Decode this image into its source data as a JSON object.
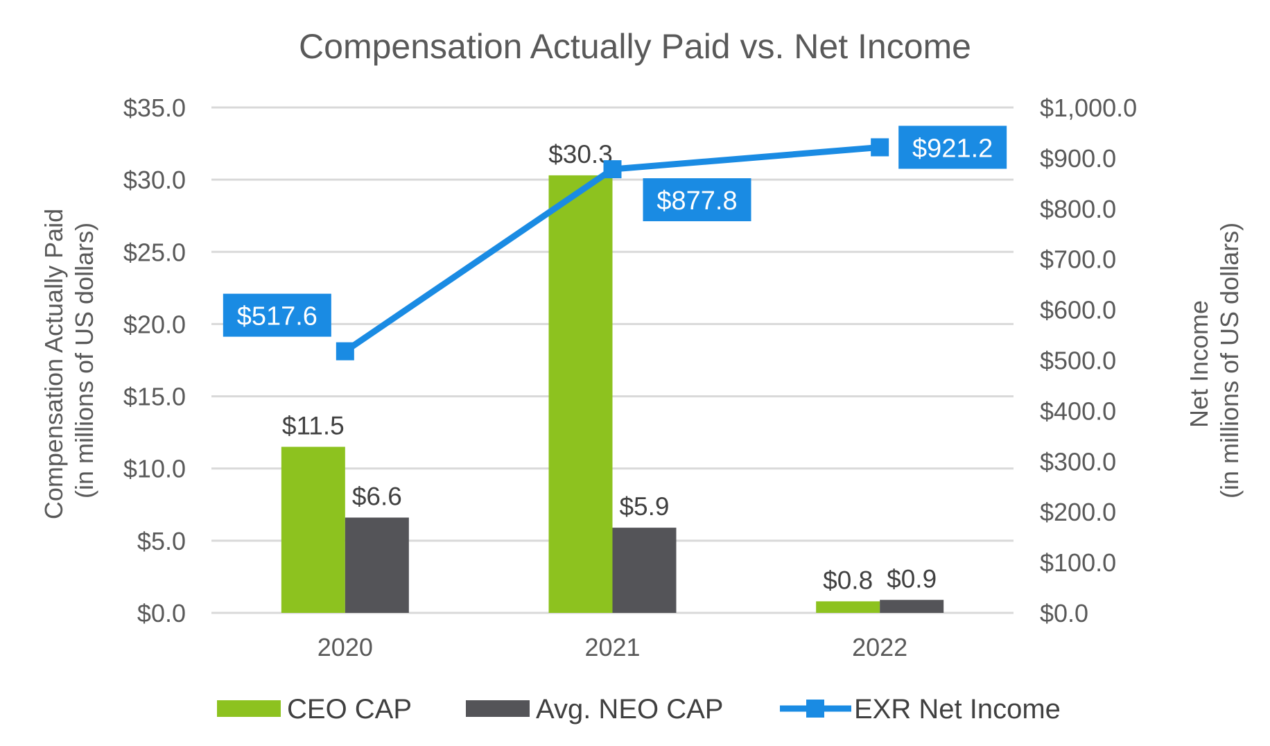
{
  "chart_data": {
    "type": "bar",
    "title": "Compensation Actually Paid vs. Net Income",
    "categories": [
      "2020",
      "2021",
      "2022"
    ],
    "ylabel_left": [
      "Compensation Actually Paid",
      "(in millions of US dollars)"
    ],
    "ylabel_right": [
      "Net Income",
      "(in millions of US dollars)"
    ],
    "ylim_left": [
      0,
      35
    ],
    "ylim_right": [
      0,
      1000
    ],
    "left_ticks": [
      {
        "value": 0,
        "label": "$0.0"
      },
      {
        "value": 5,
        "label": "$5.0"
      },
      {
        "value": 10,
        "label": "$10.0"
      },
      {
        "value": 15,
        "label": "$15.0"
      },
      {
        "value": 20,
        "label": "$20.0"
      },
      {
        "value": 25,
        "label": "$25.0"
      },
      {
        "value": 30,
        "label": "$30.0"
      },
      {
        "value": 35,
        "label": "$35.0"
      }
    ],
    "right_ticks": [
      {
        "value": 0,
        "label": "$0.0"
      },
      {
        "value": 100,
        "label": "$100.0"
      },
      {
        "value": 200,
        "label": "$200.0"
      },
      {
        "value": 300,
        "label": "$300.0"
      },
      {
        "value": 400,
        "label": "$400.0"
      },
      {
        "value": 500,
        "label": "$500.0"
      },
      {
        "value": 600,
        "label": "$600.0"
      },
      {
        "value": 700,
        "label": "$700.0"
      },
      {
        "value": 800,
        "label": "$800.0"
      },
      {
        "value": 900,
        "label": "$900.0"
      },
      {
        "value": 1000,
        "label": "$1,000.0"
      }
    ],
    "grid": true,
    "legend_position": "bottom",
    "series": [
      {
        "name": "CEO CAP",
        "kind": "bar",
        "axis": "left",
        "color": "#8DC21F",
        "values": [
          11.5,
          30.3,
          0.8
        ],
        "labels": [
          "$11.5",
          "$30.3",
          "$0.8"
        ]
      },
      {
        "name": "Avg. NEO CAP",
        "kind": "bar",
        "axis": "left",
        "color": "#545458",
        "values": [
          6.6,
          5.9,
          0.9
        ],
        "labels": [
          "$6.6",
          "$5.9",
          "$0.9"
        ]
      },
      {
        "name": "EXR Net Income",
        "kind": "line",
        "axis": "right",
        "color": "#1A8BE3",
        "values": [
          517.6,
          877.8,
          921.2
        ],
        "labels": [
          "$517.6",
          "$877.8",
          "$921.2"
        ]
      }
    ]
  }
}
